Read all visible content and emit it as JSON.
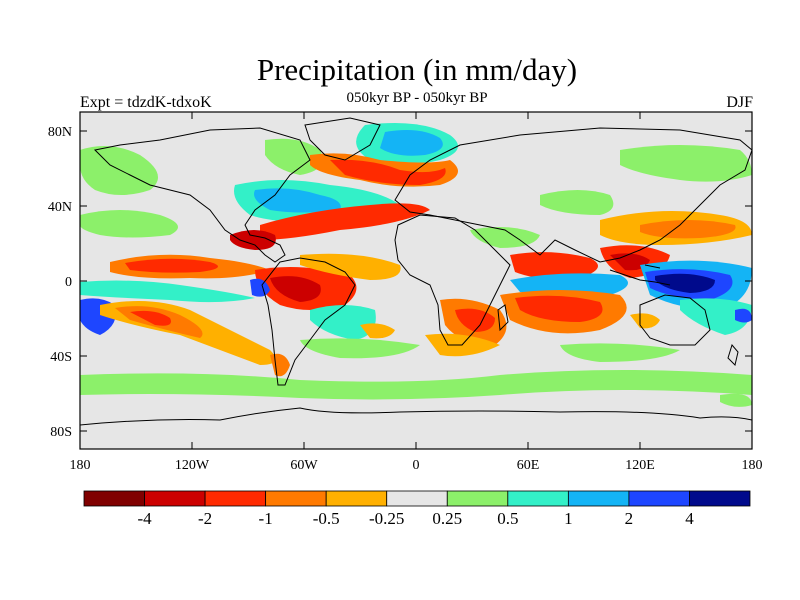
{
  "title": "Precipitation (in mm/day)",
  "subtitle": "050kyr BP - 050kyr BP",
  "left_label": "Expt = tdzdK-tdxoK",
  "right_label": "DJF",
  "y_ticks": [
    "80N",
    "40N",
    "0",
    "40S",
    "80S"
  ],
  "x_ticks": [
    "180",
    "120W",
    "60W",
    "0",
    "60E",
    "120E",
    "180"
  ],
  "colorbar": {
    "colors": [
      "#800000",
      "#cc0000",
      "#ff2a00",
      "#ff7a00",
      "#ffb000",
      "#e6e6e6",
      "#8cf06a",
      "#33f0c8",
      "#14b4f5",
      "#1e46ff",
      "#000a8c"
    ],
    "labels": [
      "-4",
      "-2",
      "-1",
      "-0.5",
      "-0.25",
      "0.25",
      "0.5",
      "1",
      "2",
      "4"
    ]
  },
  "colors": {
    "background": "#e6e6e6",
    "coast": "#000000"
  }
}
